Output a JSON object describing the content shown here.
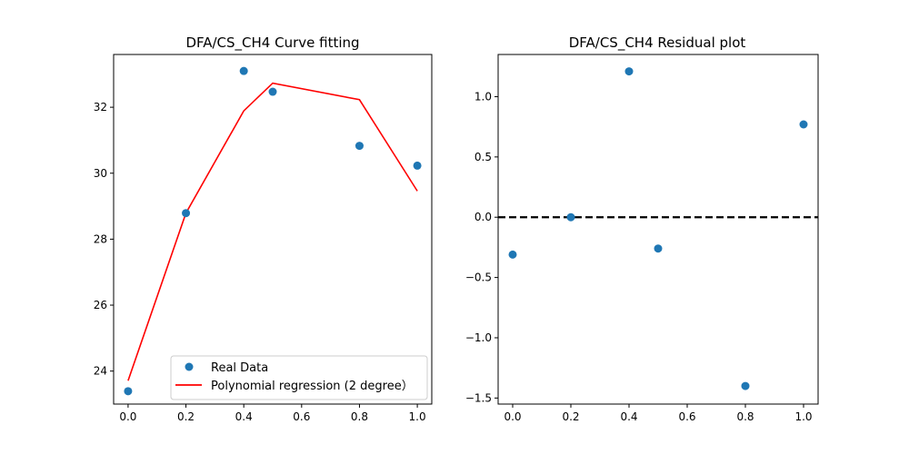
{
  "colors": {
    "points": "#1f77b4",
    "fit_line": "#ff0000",
    "zero_line": "#000000",
    "axes": "#000000",
    "legend_border": "#cccccc"
  },
  "chart_data": [
    {
      "type": "scatter",
      "title": "DFA/CS_CH4 Curve fitting",
      "xlabel": "",
      "ylabel": "",
      "xlim": [
        -0.05,
        1.05
      ],
      "ylim": [
        23.0,
        33.6
      ],
      "xticks": [
        0.0,
        0.2,
        0.4,
        0.6,
        0.8,
        1.0
      ],
      "xtick_labels": [
        "0.0",
        "0.2",
        "0.4",
        "0.6",
        "0.8",
        "1.0"
      ],
      "yticks": [
        24,
        26,
        28,
        30,
        32
      ],
      "ytick_labels": [
        "24",
        "26",
        "28",
        "30",
        "32"
      ],
      "grid": false,
      "legend_position": "lower-right",
      "series": [
        {
          "name": "Real Data",
          "kind": "scatter",
          "x": [
            0.0,
            0.2,
            0.4,
            0.5,
            0.8,
            1.0
          ],
          "y": [
            23.39,
            28.79,
            33.1,
            32.47,
            30.83,
            30.23
          ]
        },
        {
          "name": "Polynomial regression (2 degree）",
          "kind": "line",
          "x": [
            0.0,
            0.2,
            0.4,
            0.5,
            0.8,
            1.0
          ],
          "y": [
            23.71,
            28.79,
            31.89,
            32.73,
            32.23,
            29.46
          ]
        }
      ]
    },
    {
      "type": "scatter",
      "title": "DFA/CS_CH4 Residual plot",
      "xlabel": "",
      "ylabel": "",
      "xlim": [
        -0.05,
        1.05
      ],
      "ylim": [
        -1.55,
        1.35
      ],
      "xticks": [
        0.0,
        0.2,
        0.4,
        0.6,
        0.8,
        1.0
      ],
      "xtick_labels": [
        "0.0",
        "0.2",
        "0.4",
        "0.6",
        "0.8",
        "1.0"
      ],
      "yticks": [
        -1.5,
        -1.0,
        -0.5,
        0.0,
        0.5,
        1.0
      ],
      "ytick_labels": [
        "−1.5",
        "−1.0",
        "−0.5",
        "0.0",
        "0.5",
        "1.0"
      ],
      "grid": false,
      "reference_line": {
        "y": 0.0,
        "style": "dashed"
      },
      "series": [
        {
          "kind": "scatter",
          "x": [
            0.0,
            0.2,
            0.4,
            0.5,
            0.8,
            1.0
          ],
          "y": [
            -0.31,
            0.0,
            1.21,
            -0.26,
            -1.4,
            0.77
          ]
        }
      ]
    }
  ]
}
